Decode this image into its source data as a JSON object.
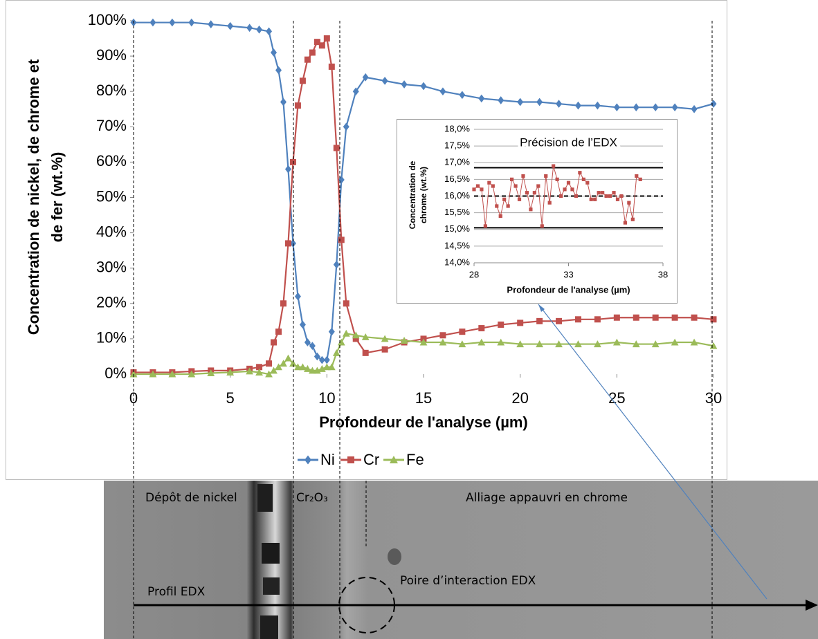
{
  "chart_data": [
    {
      "type": "line",
      "xlabel": "Profondeur de l'analyse (µm)",
      "ylabel": [
        "Concentration de nickel, de chrome et",
        "de fer (wt.%)"
      ],
      "x": [
        0,
        1,
        2,
        3,
        4,
        5,
        6,
        6.5,
        7,
        7.25,
        7.5,
        7.75,
        8,
        8.25,
        8.5,
        8.75,
        9,
        9.25,
        9.5,
        9.75,
        10,
        10.25,
        10.5,
        10.75,
        11,
        11.5,
        12,
        13,
        14,
        15,
        16,
        17,
        18,
        19,
        20,
        21,
        22,
        23,
        24,
        25,
        26,
        27,
        28,
        29,
        30
      ],
      "series": [
        {
          "name": "Ni",
          "color": "#4f81bd",
          "marker": "diamond",
          "values": [
            99.5,
            99.5,
            99.5,
            99.5,
            99,
            98.5,
            98,
            97.5,
            97,
            91,
            86,
            77,
            58,
            37,
            22,
            14,
            9,
            8,
            5,
            4,
            4,
            12,
            31,
            55,
            70,
            80,
            84,
            83,
            82,
            81.5,
            80,
            79,
            78,
            77.5,
            77,
            77,
            76.5,
            76,
            76,
            75.5,
            75.5,
            75.5,
            75.5,
            75,
            76.5
          ]
        },
        {
          "name": "Cr",
          "color": "#c0504d",
          "marker": "square",
          "values": [
            0.5,
            0.5,
            0.5,
            0.8,
            1,
            1,
            1.5,
            2,
            3,
            9,
            12,
            20,
            37,
            60,
            76,
            83,
            89,
            91,
            94,
            93,
            95,
            87,
            64,
            38,
            20,
            10,
            6,
            7,
            9,
            10,
            11,
            12,
            13,
            14,
            14.5,
            15,
            15,
            15.5,
            15.5,
            16,
            16,
            16,
            16,
            16,
            15.5
          ]
        },
        {
          "name": "Fe",
          "color": "#9bbb59",
          "marker": "triangle",
          "values": [
            0,
            0,
            0,
            0,
            0.3,
            0.5,
            0.8,
            0.5,
            0,
            1,
            2,
            3,
            4.5,
            3,
            2,
            2,
            1.5,
            1,
            1,
            1.5,
            2,
            2,
            6,
            9,
            11.5,
            11,
            10.5,
            10,
            9.5,
            9,
            9,
            8.5,
            9,
            9,
            8.5,
            8.5,
            8.5,
            8.5,
            8.5,
            9,
            8.5,
            8.5,
            9,
            9,
            8
          ]
        }
      ],
      "xlim": [
        0,
        30
      ],
      "xticks": [
        0,
        5,
        10,
        15,
        20,
        25,
        30
      ],
      "ylim": [
        0,
        100
      ],
      "yticks": [
        {
          "value": 0,
          "label": "0%"
        },
        {
          "value": 10,
          "label": "10%"
        },
        {
          "value": 20,
          "label": "20%"
        },
        {
          "value": 30,
          "label": "30%"
        },
        {
          "value": 40,
          "label": "40%"
        },
        {
          "value": 50,
          "label": "50%"
        },
        {
          "value": 60,
          "label": "60%"
        },
        {
          "value": 70,
          "label": "70%"
        },
        {
          "value": 80,
          "label": "80%"
        },
        {
          "value": 90,
          "label": "90%"
        },
        {
          "value": 100,
          "label": "100%"
        }
      ],
      "grid": false,
      "legend": "bottom"
    },
    {
      "type": "line",
      "title": "Précision de l’EDX",
      "xlabel": "Profondeur de l'analyse (µm)",
      "ylabel": [
        "Concentration de",
        "chrome (wt.%)"
      ],
      "x": [
        28,
        28.2,
        28.4,
        28.6,
        28.8,
        29,
        29.2,
        29.4,
        29.6,
        29.8,
        30,
        30.2,
        30.4,
        30.6,
        30.8,
        31,
        31.2,
        31.4,
        31.6,
        31.8,
        32,
        32.2,
        32.4,
        32.6,
        32.8,
        33,
        33.2,
        33.4,
        33.6,
        33.8,
        34,
        34.2,
        34.4,
        34.6,
        34.8,
        35,
        35.2,
        35.4,
        35.6,
        35.8,
        36,
        36.2,
        36.4,
        36.6,
        36.8
      ],
      "series": [
        {
          "color": "#c0504d",
          "marker": "square",
          "values": [
            16.2,
            16.3,
            16.2,
            15.1,
            16.4,
            16.3,
            15.7,
            15.4,
            15.9,
            15.7,
            16.5,
            16.3,
            15.9,
            16.6,
            16.1,
            15.6,
            16.1,
            16.3,
            15.1,
            16.6,
            15.8,
            16.9,
            16.5,
            16,
            16.2,
            16.4,
            16.2,
            16,
            16.7,
            16.5,
            16.4,
            15.9,
            15.9,
            16.1,
            16.1,
            16,
            16,
            16.1,
            15.9,
            16,
            15.2,
            15.8,
            15.3,
            16.6,
            16.5
          ]
        }
      ],
      "reference_lines": [
        {
          "value": 16.85,
          "dashed": false
        },
        {
          "value": 16,
          "dashed": true
        },
        {
          "value": 15.05,
          "dashed": false
        }
      ],
      "xlim": [
        28,
        38
      ],
      "xticks": [
        28,
        33,
        38
      ],
      "ylim": [
        14,
        18
      ],
      "yticks": [
        {
          "value": 14,
          "label": "14,0%"
        },
        {
          "value": 14.5,
          "label": "14,5%"
        },
        {
          "value": 15,
          "label": "15,0%"
        },
        {
          "value": 15.5,
          "label": "15,5%"
        },
        {
          "value": 16,
          "label": "16,0%"
        },
        {
          "value": 16.5,
          "label": "16,5%"
        },
        {
          "value": 17,
          "label": "17,0%"
        },
        {
          "value": 17.5,
          "label": "17,5%"
        },
        {
          "value": 18,
          "label": "18,0%"
        }
      ],
      "grid": true
    }
  ],
  "image_annotations": {
    "nickel_layer": "Dépôt de nickel",
    "oxide_layer": "Cr₂O₃",
    "alloy": "Alliage appauvri en chrome",
    "interaction": "Poire d’interaction EDX",
    "profile": "Profil EDX"
  }
}
